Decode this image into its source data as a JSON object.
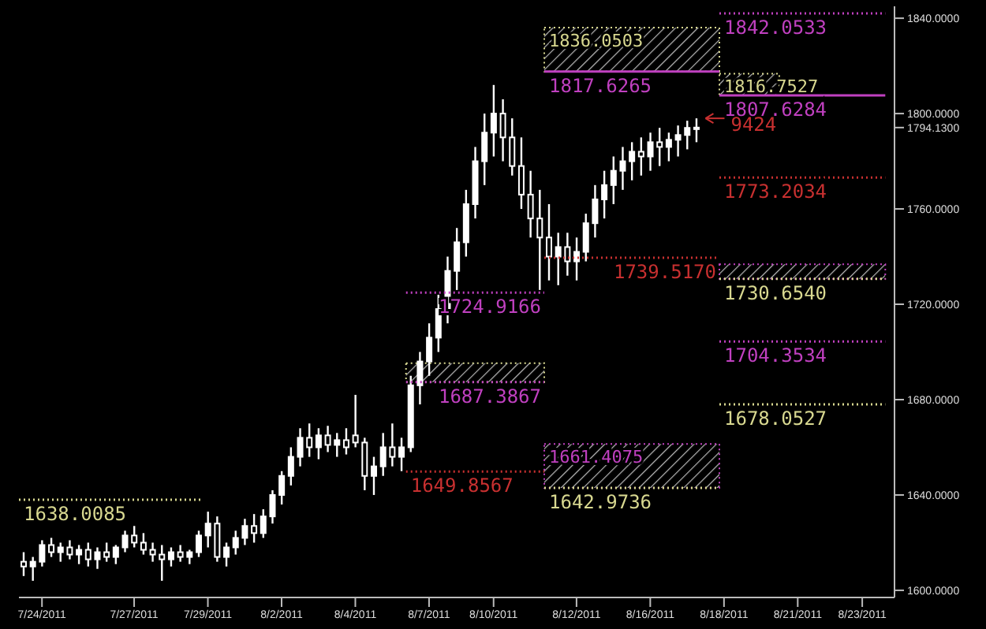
{
  "chart_data": {
    "type": "candlestick",
    "categories": [
      null,
      null,
      "7/24/2011",
      null,
      null,
      null,
      null,
      null,
      null,
      null,
      null,
      null,
      "7/27/2011",
      null,
      null,
      null,
      null,
      null,
      null,
      null,
      "7/29/2011",
      null,
      null,
      null,
      null,
      null,
      null,
      null,
      "8/2/2011",
      null,
      null,
      null,
      null,
      null,
      null,
      null,
      "8/4/2011",
      null,
      null,
      null,
      null,
      null,
      null,
      null,
      "8/7/2011",
      null,
      null,
      null,
      null,
      null,
      null,
      "8/10/2011",
      null,
      null,
      null,
      null,
      null,
      null,
      null,
      null,
      "8/12/2011",
      null,
      null,
      null,
      null,
      null,
      null,
      null,
      "8/16/2011",
      null,
      null,
      null,
      null,
      null,
      null,
      null,
      "8/18/2011",
      null,
      null,
      null,
      null,
      null,
      null,
      null,
      "8/21/2011",
      null,
      null,
      null,
      null,
      null,
      null,
      "8/23/2011",
      null,
      null,
      null
    ],
    "ohlc": [
      [
        1612,
        1616,
        1606,
        1610
      ],
      [
        1610,
        1614,
        1604,
        1612
      ],
      [
        1612,
        1621,
        1610,
        1619
      ],
      [
        1619,
        1622,
        1614,
        1616
      ],
      [
        1616,
        1620,
        1612,
        1618
      ],
      [
        1618,
        1621,
        1613,
        1615
      ],
      [
        1615,
        1619,
        1611,
        1617
      ],
      [
        1617,
        1620,
        1610,
        1613
      ],
      [
        1613,
        1618,
        1609,
        1616
      ],
      [
        1616,
        1620,
        1612,
        1614
      ],
      [
        1614,
        1619,
        1611,
        1618
      ],
      [
        1618,
        1625,
        1616,
        1623
      ],
      [
        1623,
        1627,
        1618,
        1620
      ],
      [
        1620,
        1624,
        1615,
        1617
      ],
      [
        1617,
        1620,
        1612,
        1615
      ],
      [
        1615,
        1619,
        1604,
        1613
      ],
      [
        1613,
        1618,
        1610,
        1616
      ],
      [
        1616,
        1619,
        1612,
        1614
      ],
      [
        1614,
        1617,
        1611,
        1616
      ],
      [
        1616,
        1625,
        1614,
        1623
      ],
      [
        1623,
        1633,
        1618,
        1628
      ],
      [
        1628,
        1631,
        1612,
        1614
      ],
      [
        1614,
        1620,
        1610,
        1618
      ],
      [
        1618,
        1625,
        1615,
        1622
      ],
      [
        1622,
        1630,
        1619,
        1627
      ],
      [
        1627,
        1632,
        1620,
        1624
      ],
      [
        1624,
        1634,
        1622,
        1631
      ],
      [
        1631,
        1642,
        1628,
        1640
      ],
      [
        1640,
        1650,
        1636,
        1648
      ],
      [
        1648,
        1660,
        1644,
        1656
      ],
      [
        1656,
        1668,
        1652,
        1664
      ],
      [
        1664,
        1670,
        1656,
        1660
      ],
      [
        1660,
        1668,
        1655,
        1665
      ],
      [
        1665,
        1669,
        1658,
        1661
      ],
      [
        1661,
        1666,
        1656,
        1663
      ],
      [
        1663,
        1668,
        1657,
        1660
      ],
      [
        1665,
        1682,
        1660,
        1662
      ],
      [
        1662,
        1664,
        1642,
        1648
      ],
      [
        1648,
        1656,
        1640,
        1652
      ],
      [
        1652,
        1666,
        1648,
        1660
      ],
      [
        1660,
        1670,
        1652,
        1656
      ],
      [
        1656,
        1664,
        1650,
        1660
      ],
      [
        1660,
        1690,
        1658,
        1686
      ],
      [
        1686,
        1700,
        1678,
        1696
      ],
      [
        1696,
        1712,
        1690,
        1706
      ],
      [
        1706,
        1724,
        1700,
        1718
      ],
      [
        1718,
        1740,
        1712,
        1734
      ],
      [
        1734,
        1752,
        1726,
        1746
      ],
      [
        1746,
        1768,
        1740,
        1762
      ],
      [
        1762,
        1786,
        1756,
        1780
      ],
      [
        1780,
        1800,
        1770,
        1792
      ],
      [
        1792,
        1812,
        1782,
        1800
      ],
      [
        1800,
        1806,
        1780,
        1790
      ],
      [
        1790,
        1798,
        1774,
        1778
      ],
      [
        1778,
        1790,
        1760,
        1766
      ],
      [
        1766,
        1776,
        1748,
        1756
      ],
      [
        1756,
        1768,
        1726,
        1748
      ],
      [
        1748,
        1762,
        1730,
        1740
      ],
      [
        1740,
        1750,
        1728,
        1744
      ],
      [
        1744,
        1750,
        1732,
        1738
      ],
      [
        1738,
        1748,
        1730,
        1742
      ],
      [
        1742,
        1758,
        1738,
        1754
      ],
      [
        1754,
        1770,
        1748,
        1764
      ],
      [
        1764,
        1776,
        1756,
        1770
      ],
      [
        1770,
        1782,
        1762,
        1776
      ],
      [
        1776,
        1786,
        1768,
        1780
      ],
      [
        1780,
        1788,
        1772,
        1784
      ],
      [
        1784,
        1790,
        1774,
        1782
      ],
      [
        1782,
        1792,
        1776,
        1788
      ],
      [
        1788,
        1794,
        1778,
        1786
      ],
      [
        1786,
        1792,
        1780,
        1789
      ],
      [
        1789,
        1795,
        1782,
        1791
      ],
      [
        1791,
        1797,
        1785,
        1794
      ],
      [
        1794,
        1798,
        1788,
        1794.13
      ],
      null,
      null,
      null,
      null,
      null,
      null,
      null,
      null,
      null,
      null,
      null,
      null,
      null,
      null,
      null,
      null,
      null,
      null,
      null,
      null,
      null
    ],
    "color": "#ffffff",
    "ylim": [
      1597,
      1845
    ],
    "yticks": [
      {
        "value": 1600,
        "label": "1600.0000"
      },
      {
        "value": 1640,
        "label": "1640.0000"
      },
      {
        "value": 1680,
        "label": "1680.0000"
      },
      {
        "value": 1720,
        "label": "1720.0000"
      },
      {
        "value": 1760,
        "label": "1760.0000"
      },
      {
        "value": 1794.13,
        "label": "1794.1300"
      },
      {
        "value": 1800,
        "label": "1800.0000"
      },
      {
        "value": 1840,
        "label": "1840.0000"
      }
    ],
    "ref_lines": [
      {
        "axis": "y",
        "value": 1638.0085,
        "label": "1638.0085",
        "color": "#d8d890",
        "line_style": "dotted"
      },
      {
        "axis": "y",
        "value": 1649.8567,
        "label": "1649.8567",
        "color": "#c83030",
        "line_style": "dotted"
      },
      {
        "axis": "y",
        "value": 1687.3867,
        "label": "1687.3867",
        "color": "#c040c0",
        "line_style": "dotted"
      },
      {
        "axis": "y",
        "value": 1724.9166,
        "label": "1724.9166",
        "color": "#c040c0",
        "line_style": "dotted"
      },
      {
        "axis": "y",
        "value": 1739.517,
        "label": "1739.5170",
        "color": "#c83030",
        "line_style": "dotted"
      },
      {
        "axis": "y",
        "value": 1817.6265,
        "label": "1817.6265",
        "color": "#c040c0",
        "line_style": "solid"
      },
      {
        "axis": "y",
        "value": 1642.9736,
        "label": "1642.9736",
        "color": "#d8d890",
        "line_style": "dotted"
      },
      {
        "axis": "y",
        "value": 1842.0533,
        "label": "1842.0533",
        "color": "#c040c0",
        "line_style": "dotted"
      },
      {
        "axis": "y",
        "value": 1807.6284,
        "label": "1807.6284",
        "color": "#c040c0",
        "line_style": "solid"
      },
      {
        "axis": "y",
        "value": 1773.2034,
        "label": "1773.2034",
        "color": "#c83030",
        "line_style": "dotted"
      },
      {
        "axis": "y",
        "value": 1730.654,
        "label": "1730.6540",
        "color": "#d8d890",
        "line_style": "dotted"
      },
      {
        "axis": "y",
        "value": 1704.3534,
        "label": "1704.3534",
        "color": "#c040c0",
        "line_style": "dotted"
      },
      {
        "axis": "y",
        "value": 1678.0527,
        "label": "1678.0527",
        "color": "#d8d890",
        "line_style": "dotted"
      }
    ],
    "bands": [
      {
        "axis": "y",
        "from": 1817.6265,
        "to": 1836.0503,
        "label": "1836.0503",
        "color": "#d8d890"
      },
      {
        "axis": "y",
        "from": 1807.6284,
        "to": 1816.7527,
        "label": "1816.7527",
        "color": "#d8d890"
      },
      {
        "axis": "y",
        "from": 1642.9736,
        "to": 1661.4075,
        "label": "1661.4075",
        "color": "#c040c0"
      },
      {
        "axis": "y",
        "from": 1730.654,
        "to": 1736.77,
        "color": "#c040c0"
      },
      {
        "axis": "y",
        "from": 1687.3867,
        "to": 1695.25,
        "color": "#d8d890"
      }
    ],
    "annotations": [
      "9424"
    ]
  }
}
